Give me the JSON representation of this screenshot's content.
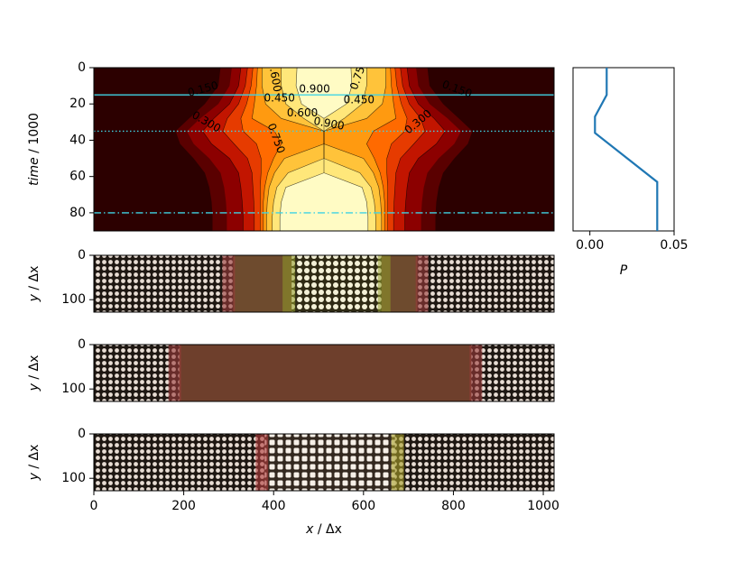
{
  "chart_data": [
    {
      "type": "heatmap",
      "subtype": "contour",
      "colormap": "hot",
      "xlim": [
        0,
        1024
      ],
      "ylim": [
        90,
        0
      ],
      "ylabel_parts": [
        "time",
        " / 1000"
      ],
      "yticks": [
        0,
        20,
        40,
        60,
        80
      ],
      "xticks": [],
      "contour_labels": [
        {
          "text": "0.600",
          "x": 402,
          "y": 5,
          "rotate": 80
        },
        {
          "text": "0.750",
          "x": 590,
          "y": 4,
          "rotate": -70
        },
        {
          "text": "0.900",
          "x": 491,
          "y": 12
        },
        {
          "text": "0.150",
          "x": 243,
          "y": 12,
          "rotate": -15
        },
        {
          "text": "0.150",
          "x": 808,
          "y": 12,
          "rotate": 20
        },
        {
          "text": "0.450",
          "x": 413,
          "y": 17
        },
        {
          "text": "0.450",
          "x": 590,
          "y": 18
        },
        {
          "text": "0.600",
          "x": 464,
          "y": 25
        },
        {
          "text": "0.300",
          "x": 250,
          "y": 30,
          "rotate": 30
        },
        {
          "text": "0.900",
          "x": 523,
          "y": 31,
          "rotate": 10
        },
        {
          "text": "0.300",
          "x": 722,
          "y": 30,
          "rotate": -40
        },
        {
          "text": "0.750",
          "x": 405,
          "y": 39,
          "rotate": 70
        }
      ],
      "hlines": [
        {
          "y": 15,
          "style": "solid",
          "color": "#3fd3e4"
        },
        {
          "y": 35,
          "style": "dotted",
          "color": "#3fd3e4"
        },
        {
          "y": 80,
          "style": "dashdot",
          "color": "#3fd3e4"
        }
      ]
    },
    {
      "type": "line",
      "x": [
        0.01,
        0.01,
        0.003,
        0.003,
        0.04,
        0.04
      ],
      "y": [
        0,
        15,
        27,
        36,
        63,
        90
      ],
      "xlabel": "P",
      "xlim": [
        -0.01,
        0.05
      ],
      "ylim": [
        90,
        0
      ],
      "xticks": [
        "0.00",
        "0.05"
      ],
      "xtick_values": [
        0,
        0.05
      ],
      "yticks": [],
      "color": "#1f77b4"
    },
    {
      "type": "heatmap",
      "subtype": "image",
      "xlim": [
        0,
        1024
      ],
      "ylim": [
        128,
        0
      ],
      "yticks": [
        0,
        100
      ],
      "ylabel_parts": [
        "y",
        " / Δx"
      ],
      "phase_bounds": [
        310,
        720
      ]
    },
    {
      "type": "heatmap",
      "subtype": "image",
      "xlim": [
        0,
        1024
      ],
      "ylim": [
        128,
        0
      ],
      "yticks": [
        0,
        100
      ],
      "ylabel_parts": [
        "y",
        " / Δx"
      ],
      "phase_bounds": [
        190,
        840
      ]
    },
    {
      "type": "heatmap",
      "subtype": "image",
      "xlim": [
        0,
        1024
      ],
      "ylim": [
        128,
        0
      ],
      "yticks": [
        0,
        100
      ],
      "ylabel_parts": [
        "y",
        " / Δx"
      ],
      "xticks": [
        0,
        200,
        400,
        600,
        800,
        1000
      ],
      "xlabel_parts": [
        "x",
        " / Δx"
      ],
      "phase_bounds": [
        380,
        670
      ]
    }
  ]
}
